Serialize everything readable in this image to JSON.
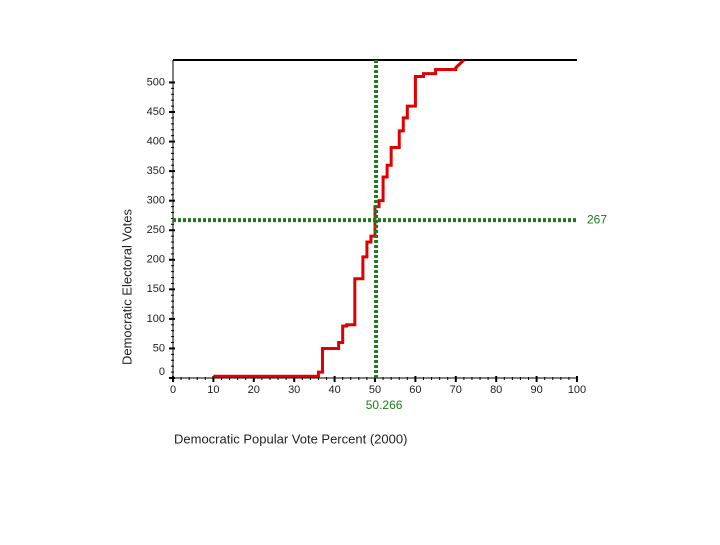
{
  "chart_data": {
    "type": "line",
    "x_label": "Democratic Popular Vote Percent  (2000)",
    "y_label": "Democratic Electoral Votes",
    "x": [
      10,
      36,
      36,
      37,
      37,
      41,
      41,
      42,
      42,
      43,
      43,
      45,
      45,
      47,
      47,
      48,
      48,
      49,
      49,
      50,
      50,
      51,
      51,
      52,
      52,
      53,
      53,
      54,
      54,
      56,
      56,
      57,
      57,
      58,
      58,
      60,
      60,
      62,
      62,
      65,
      65,
      70,
      70,
      72
    ],
    "series": [
      {
        "color": "#e00000",
        "values": [
          3,
          3,
          10,
          10,
          50,
          50,
          60,
          60,
          88,
          88,
          90,
          90,
          168,
          168,
          205,
          205,
          230,
          230,
          240,
          240,
          290,
          290,
          300,
          300,
          340,
          340,
          360,
          360,
          390,
          390,
          418,
          418,
          440,
          440,
          460,
          460,
          510,
          510,
          515,
          515,
          522,
          522,
          525,
          538
        ]
      }
    ],
    "xlim": [
      0,
      100
    ],
    "xticks": [
      0,
      10,
      20,
      30,
      40,
      50,
      60,
      70,
      80,
      90,
      100
    ],
    "ylim": [
      0,
      538
    ],
    "yticks": [
      0,
      50,
      100,
      150,
      200,
      250,
      300,
      350,
      400,
      450,
      500
    ],
    "x_reference": 50.266,
    "y_reference": 267,
    "reference_color": "#1f7a1f"
  }
}
